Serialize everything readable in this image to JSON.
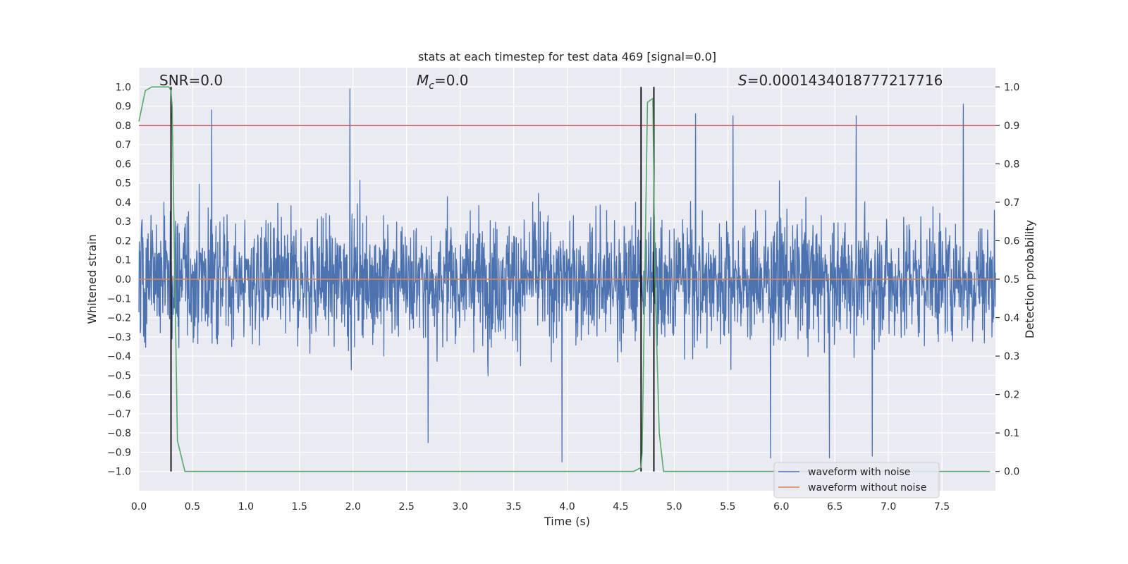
{
  "chart_data": {
    "type": "line",
    "title": "stats at each timestep for test data 469 [signal=0.0]",
    "xlabel": "Time (s)",
    "ylabel": "Whitened strain",
    "y2label": "Detection probability",
    "xlim": [
      0.0,
      8.0
    ],
    "ylim": [
      -1.1,
      1.1
    ],
    "y2lim": [
      -0.05,
      1.05
    ],
    "grid": true,
    "xticks": [
      "0.0",
      "0.5",
      "1.0",
      "1.5",
      "2.0",
      "2.5",
      "3.0",
      "3.5",
      "4.0",
      "4.5",
      "5.0",
      "5.5",
      "6.0",
      "6.5",
      "7.0",
      "7.5"
    ],
    "yticks": [
      "1.0",
      "0.9",
      "0.8",
      "0.7",
      "0.6",
      "0.5",
      "0.4",
      "0.3",
      "0.2",
      "0.1",
      "0.0",
      "-0.1",
      "-0.2",
      "-0.3",
      "-0.4",
      "-0.5",
      "-0.6",
      "-0.7",
      "-0.8",
      "-0.9",
      "-1.0"
    ],
    "y2ticks": [
      "1.0",
      "0.9",
      "0.8",
      "0.7",
      "0.6",
      "0.5",
      "0.4",
      "0.3",
      "0.2",
      "0.1",
      "0.0"
    ],
    "annotations": {
      "snr": "SNR=0.0",
      "mc": "=0.0",
      "mc_symbol": "M",
      "mc_sub": "c",
      "s_symbol": "S",
      "s": "=0.0001434018777217716"
    },
    "legend": {
      "position": "lower-right",
      "entries": [
        "waveform with noise",
        "waveform without noise"
      ]
    },
    "colors": {
      "noise": "#4c72b0",
      "clean": "#dd8452",
      "probability": "#55a868",
      "threshold": "#c44e52",
      "markers": "#000000",
      "plot_bg": "#eaeaf2",
      "grid": "#ffffff"
    },
    "series": [
      {
        "name": "waveform with noise",
        "kind": "noise",
        "envelope_typical": 0.38,
        "max_spike": 0.99,
        "min_spike": -0.95,
        "peaks": [
          [
            1.97,
            0.99
          ],
          [
            0.68,
            0.88
          ],
          [
            5.2,
            0.86
          ],
          [
            7.7,
            0.91
          ],
          [
            6.7,
            0.85
          ],
          [
            5.55,
            0.85
          ],
          [
            3.95,
            -0.95
          ],
          [
            6.45,
            -0.93
          ],
          [
            5.9,
            -0.93
          ],
          [
            6.85,
            -0.92
          ],
          [
            2.7,
            -0.85
          ]
        ]
      },
      {
        "name": "waveform without noise",
        "value": 0.0
      },
      {
        "name": "detection probability",
        "axis": "right",
        "x": [
          0.0,
          0.06,
          0.12,
          0.28,
          0.3,
          0.31,
          0.36,
          0.43,
          4.62,
          4.69,
          4.7,
          4.75,
          4.8,
          4.82,
          4.86,
          4.9,
          7.95
        ],
        "y": [
          0.91,
          0.99,
          1.0,
          1.0,
          0.99,
          0.95,
          0.08,
          0.0,
          0.0,
          0.01,
          0.05,
          0.96,
          0.97,
          0.5,
          0.1,
          0.0,
          0.0
        ]
      }
    ],
    "threshold": {
      "axis": "right",
      "value": 0.9
    },
    "vertical_markers": [
      0.3,
      4.69,
      4.81
    ]
  }
}
